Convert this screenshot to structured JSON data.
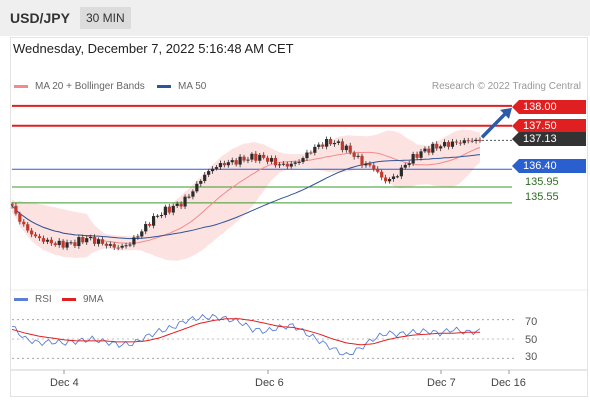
{
  "header": {
    "pair": "USD/JPY",
    "timeframe": "30 MIN"
  },
  "date_line": "Wednesday, December 7, 2022 5:16:48 AM CET",
  "credit": "Research © 2022 Trading Central",
  "legend_main": [
    {
      "label": "MA 20 + Bollinger Bands",
      "color": "#f28b8b"
    },
    {
      "label": "MA 50",
      "color": "#2e5597"
    }
  ],
  "legend_rsi": [
    {
      "label": "RSI",
      "color": "#5b7fd6"
    },
    {
      "label": "9MA",
      "color": "#e02020"
    }
  ],
  "levels": [
    {
      "label": "138.00",
      "value": 138.0,
      "color": "#e02020",
      "style": "resistance",
      "tag": true
    },
    {
      "label": "137.50",
      "value": 137.5,
      "color": "#e02020",
      "style": "resistance",
      "tag": true
    },
    {
      "label": "137.13",
      "value": 137.13,
      "color": "#333333",
      "style": "last",
      "tag": true
    },
    {
      "label": "136.40",
      "value": 136.4,
      "color": "#2a5fd0",
      "style": "pivot",
      "tag": true
    },
    {
      "label": "135.95",
      "value": 135.95,
      "color": "#3a9a2a",
      "style": "support",
      "tag": false
    },
    {
      "label": "135.55",
      "value": 135.55,
      "color": "#3a9a2a",
      "style": "support",
      "tag": false
    }
  ],
  "chart_data": [
    {
      "type": "candlestick",
      "title": "USD/JPY 30 MIN",
      "x_tick_labels": [
        "Dec 4",
        "Dec 6",
        "Dec 7",
        "Dec 16"
      ],
      "ylim": [
        133.6,
        138.15
      ],
      "series": [
        {
          "name": "MA 20 + Bollinger Bands",
          "kind": "line+band"
        },
        {
          "name": "MA 50",
          "kind": "line"
        }
      ],
      "close_path": [
        135.43,
        135.0,
        134.72,
        134.6,
        134.52,
        134.5,
        134.55,
        134.66,
        134.58,
        134.48,
        134.42,
        134.5,
        134.78,
        135.08,
        135.3,
        135.42,
        135.55,
        135.85,
        136.23,
        136.45,
        136.55,
        136.6,
        136.67,
        136.72,
        136.66,
        136.52,
        136.5,
        136.6,
        136.85,
        137.03,
        137.1,
        137.0,
        136.8,
        136.54,
        136.45,
        136.1,
        136.2,
        136.52,
        136.76,
        136.9,
        136.98,
        137.04,
        137.08,
        137.13,
        137.13
      ],
      "forecast": {
        "from": 137.13,
        "to": 138.0
      },
      "last_price": 137.13
    },
    {
      "type": "line",
      "title": "RSI",
      "ylim": [
        20,
        80
      ],
      "y_ticks": [
        70,
        50,
        30
      ],
      "series": [
        {
          "name": "RSI",
          "color": "#5b7fd6",
          "values": [
            63,
            50,
            46,
            47,
            46,
            48,
            50,
            47,
            44,
            45,
            52,
            58,
            62,
            69,
            72,
            73,
            71,
            68,
            60,
            58,
            62,
            64,
            56,
            48,
            40,
            33,
            40,
            50,
            56,
            55,
            57,
            58,
            56,
            60,
            57,
            58
          ]
        },
        {
          "name": "9MA",
          "color": "#e02020",
          "values": [
            60,
            56,
            53,
            51,
            49,
            48,
            48,
            48,
            47,
            47,
            48,
            51,
            56,
            61,
            66,
            69,
            71,
            71,
            69,
            66,
            63,
            62,
            59,
            55,
            50,
            46,
            44,
            45,
            49,
            52,
            54,
            55,
            56,
            56,
            57,
            57
          ]
        }
      ]
    }
  ]
}
